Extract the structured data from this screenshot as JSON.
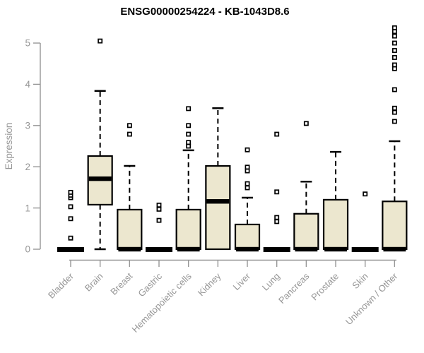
{
  "page": {
    "background_color": "#ffffff"
  },
  "chart_data": {
    "type": "boxplot",
    "title": "ENSG00000254224 - KB-1043D8.6",
    "ylabel": "Expression",
    "xlabel": "",
    "ylim": [
      0,
      5
    ],
    "yticks": [
      0,
      1,
      2,
      3,
      4,
      5
    ],
    "grid": false,
    "legend": "none",
    "box_fill_color": "#ece7cf",
    "box_stroke_color": "#000000",
    "axis_color": "#969696",
    "title_color": "#000000",
    "categories": [
      "Bladder",
      "Brain",
      "Breast",
      "Gastric",
      "Hematopoietic cells",
      "Kidney",
      "Liver",
      "Lung",
      "Pancreas",
      "Prostate",
      "Skin",
      "Unknown / Other"
    ],
    "series": [
      {
        "category": "Bladder",
        "min": 0,
        "q1": 0,
        "median": 0,
        "q3": 0,
        "max": 0,
        "outliers": [
          0.27,
          0.74,
          1.03,
          1.25,
          1.31,
          1.38
        ]
      },
      {
        "category": "Brain",
        "min": 0,
        "q1": 1.08,
        "median": 1.71,
        "q3": 2.26,
        "max": 3.84,
        "outliers": [
          5.05
        ]
      },
      {
        "category": "Breast",
        "min": 0,
        "q1": 0,
        "median": 0,
        "q3": 0.96,
        "max": 2.02,
        "outliers": [
          2.79,
          3.0
        ]
      },
      {
        "category": "Gastric",
        "min": 0,
        "q1": 0,
        "median": 0,
        "q3": 0,
        "max": 0,
        "outliers": [
          0.7,
          0.97,
          1.07
        ]
      },
      {
        "category": "Hematopoietic cells",
        "min": 0,
        "q1": 0,
        "median": 0,
        "q3": 0.96,
        "max": 2.4,
        "outliers": [
          2.5,
          2.59,
          2.79,
          3.0,
          3.41
        ]
      },
      {
        "category": "Kidney",
        "min": 0,
        "q1": 0,
        "median": 1.16,
        "q3": 2.02,
        "max": 3.42,
        "outliers": []
      },
      {
        "category": "Liver",
        "min": 0,
        "q1": 0,
        "median": 0,
        "q3": 0.6,
        "max": 1.25,
        "outliers": [
          1.49,
          1.59,
          1.9,
          1.99,
          2.41
        ]
      },
      {
        "category": "Lung",
        "min": 0,
        "q1": 0,
        "median": 0,
        "q3": 0,
        "max": 0,
        "outliers": [
          0.67,
          0.77,
          1.39,
          2.79
        ]
      },
      {
        "category": "Pancreas",
        "min": 0,
        "q1": 0,
        "median": 0,
        "q3": 0.86,
        "max": 1.64,
        "outliers": [
          3.05
        ]
      },
      {
        "category": "Prostate",
        "min": 0,
        "q1": 0,
        "median": 0,
        "q3": 1.2,
        "max": 2.36,
        "outliers": []
      },
      {
        "category": "Skin",
        "min": 0,
        "q1": 0,
        "median": 0,
        "q3": 0,
        "max": 0,
        "outliers": [
          1.34
        ]
      },
      {
        "category": "Unknown / Other",
        "min": 0,
        "q1": 0,
        "median": 0,
        "q3": 1.16,
        "max": 2.62,
        "outliers": [
          3.1,
          3.32,
          3.42,
          3.87,
          4.38,
          4.47,
          4.65,
          4.82,
          5.0,
          5.17,
          5.28,
          5.37
        ]
      }
    ]
  }
}
